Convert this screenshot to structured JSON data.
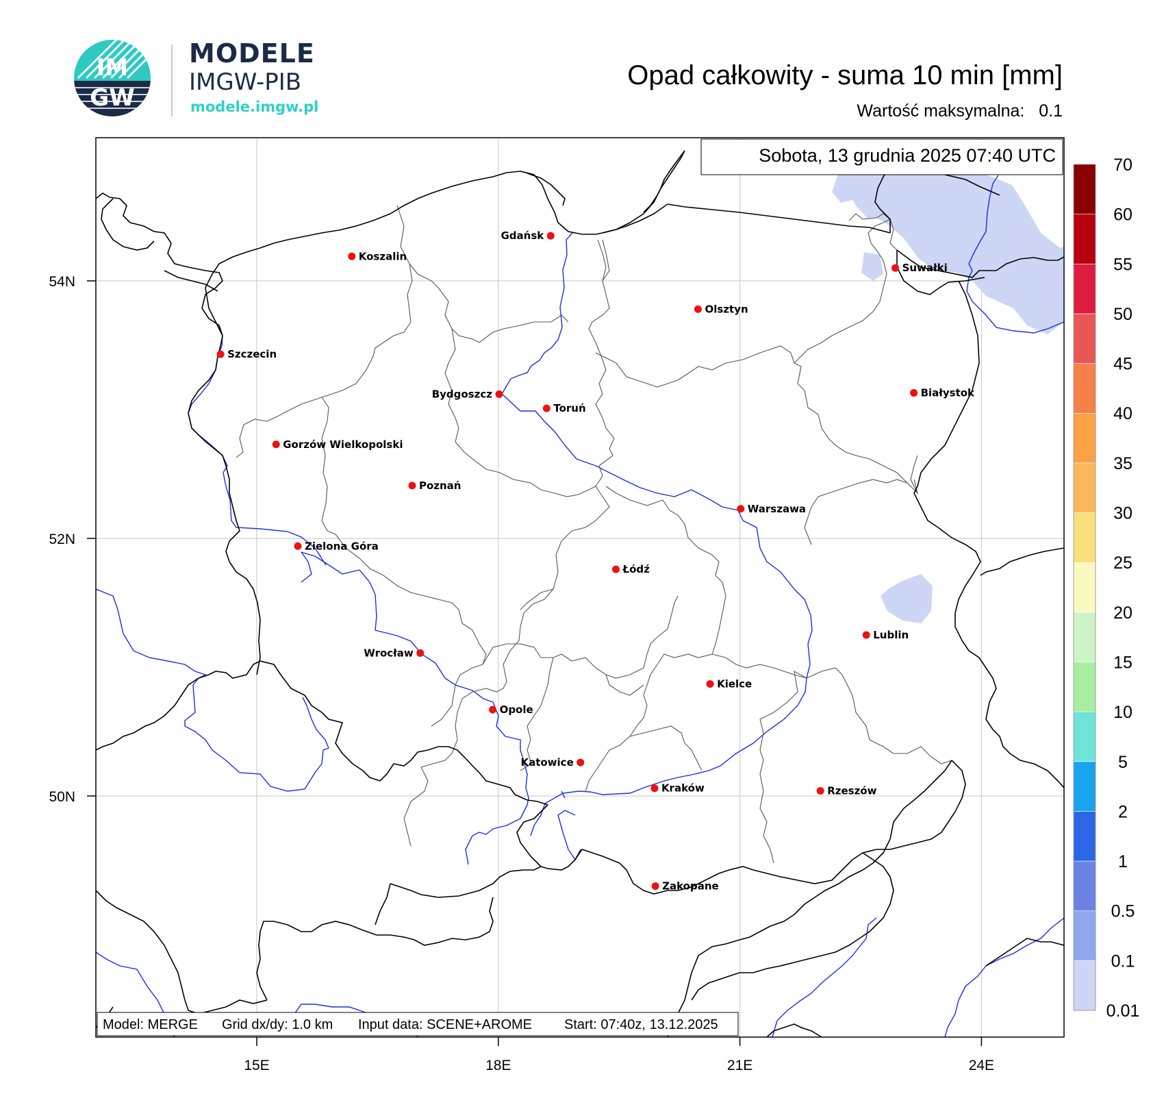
{
  "header": {
    "logo_text_top": "IM",
    "logo_text_bottom": "GW",
    "brand_name": "MODELE",
    "brand_org": "IMGW-PIB",
    "brand_url": "modele.imgw.pl"
  },
  "title": "Opad całkowity - suma 10 min [mm]",
  "max_value": {
    "label": "Wartość maksymalna:",
    "value": "0.1"
  },
  "datetime": "Sobota, 13 grudnia 2025 07:40 UTC",
  "footer": {
    "model": "Model: MERGE",
    "grid": "Grid dx/dy: 1.0 km",
    "input": "Input data: SCENE+AROME",
    "start": "Start: 07:40z, 13.12.2025"
  },
  "axes": {
    "lat_labels": [
      "54N",
      "52N",
      "50N"
    ],
    "lon_labels": [
      "15E",
      "18E",
      "21E",
      "24E"
    ]
  },
  "colorbar": {
    "levels": [
      "0.01",
      "0.1",
      "0.5",
      "1",
      "2",
      "5",
      "10",
      "15",
      "20",
      "25",
      "30",
      "35",
      "40",
      "45",
      "50",
      "55",
      "60",
      "70"
    ],
    "colors": [
      "#cdd6f4",
      "#8fa8ee",
      "#6a82e4",
      "#2b66e6",
      "#1aa3ee",
      "#6ee4d8",
      "#a9eea0",
      "#cdf4c6",
      "#fafac0",
      "#f9e07a",
      "#fbb85a",
      "#fba245",
      "#f6804a",
      "#e85656",
      "#de1c3e",
      "#b70010",
      "#8a0000"
    ]
  },
  "cities": [
    {
      "name": "Gdańsk",
      "lon": 18.65,
      "lat": 54.35,
      "label_side": "left"
    },
    {
      "name": "Koszalin",
      "lon": 16.18,
      "lat": 54.19,
      "label_side": "right"
    },
    {
      "name": "Suwałki",
      "lon": 22.93,
      "lat": 54.1,
      "label_side": "right"
    },
    {
      "name": "Olsztyn",
      "lon": 20.48,
      "lat": 53.78,
      "label_side": "right"
    },
    {
      "name": "Szczecin",
      "lon": 14.55,
      "lat": 53.43,
      "label_side": "right"
    },
    {
      "name": "Białystok",
      "lon": 23.16,
      "lat": 53.13,
      "label_side": "right"
    },
    {
      "name": "Bydgoszcz",
      "lon": 18.01,
      "lat": 53.12,
      "label_side": "left"
    },
    {
      "name": "Toruń",
      "lon": 18.6,
      "lat": 53.01,
      "label_side": "right"
    },
    {
      "name": "Gorzów Wielkopolski",
      "lon": 15.24,
      "lat": 52.73,
      "label_side": "right"
    },
    {
      "name": "Poznań",
      "lon": 16.93,
      "lat": 52.41,
      "label_side": "right"
    },
    {
      "name": "Warszawa",
      "lon": 21.01,
      "lat": 52.23,
      "label_side": "right"
    },
    {
      "name": "Zielona Góra",
      "lon": 15.51,
      "lat": 51.94,
      "label_side": "right"
    },
    {
      "name": "Łódź",
      "lon": 19.46,
      "lat": 51.76,
      "label_side": "right"
    },
    {
      "name": "Lublin",
      "lon": 22.57,
      "lat": 51.25,
      "label_side": "right"
    },
    {
      "name": "Wrocław",
      "lon": 17.03,
      "lat": 51.11,
      "label_side": "left"
    },
    {
      "name": "Kielce",
      "lon": 20.63,
      "lat": 50.87,
      "label_side": "right"
    },
    {
      "name": "Opole",
      "lon": 17.93,
      "lat": 50.67,
      "label_side": "right"
    },
    {
      "name": "Katowice",
      "lon": 19.02,
      "lat": 50.26,
      "label_side": "left"
    },
    {
      "name": "Rzeszów",
      "lon": 22.0,
      "lat": 50.04,
      "label_side": "right"
    },
    {
      "name": "Kraków",
      "lon": 19.94,
      "lat": 50.06,
      "label_side": "right"
    },
    {
      "name": "Zakopane",
      "lon": 19.95,
      "lat": 49.3,
      "label_side": "right"
    }
  ]
}
